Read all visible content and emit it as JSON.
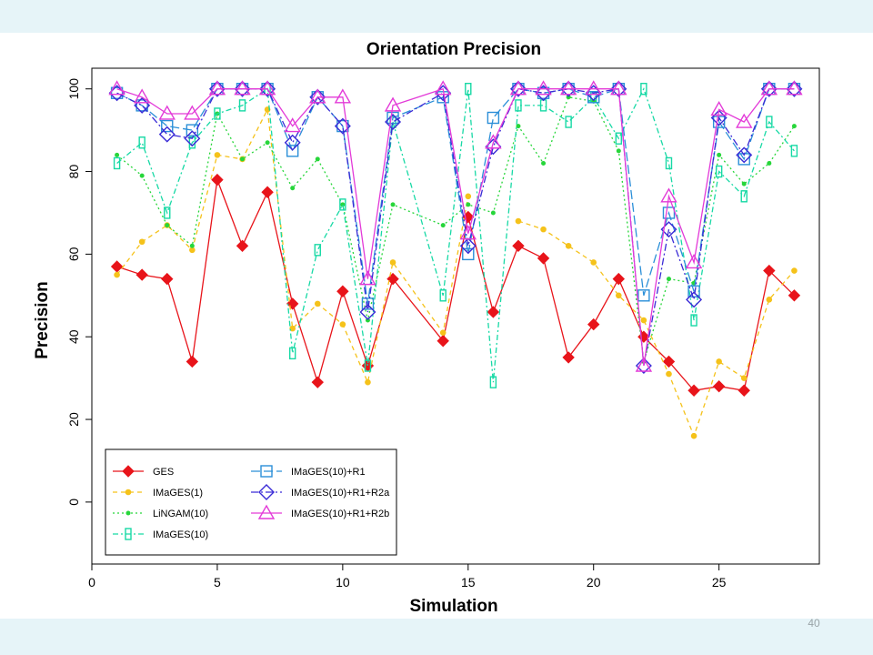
{
  "slide": {
    "number": "40"
  },
  "colors": {
    "band": "#e6f4f8"
  },
  "chart_data": {
    "type": "line",
    "title": "Orientation Precision",
    "xlabel": "Simulation",
    "ylabel": "Precision",
    "xlim": [
      0,
      29
    ],
    "ylim": [
      -15,
      105
    ],
    "xticks": [
      0,
      5,
      10,
      15,
      20,
      25
    ],
    "yticks": [
      0,
      20,
      40,
      60,
      80,
      100
    ],
    "grid": false,
    "legend_position": "bottom-left",
    "x": [
      1,
      2,
      3,
      4,
      5,
      6,
      7,
      8,
      9,
      10,
      11,
      12,
      14,
      15,
      16,
      17,
      18,
      19,
      20,
      21,
      22,
      23,
      24,
      25,
      26,
      27,
      28
    ],
    "series": [
      {
        "name": "GES",
        "color": "#e8141a",
        "dash": "",
        "marker": "diamond-filled",
        "values": [
          57,
          55,
          54,
          34,
          78,
          62,
          75,
          48,
          29,
          51,
          33,
          54,
          39,
          69,
          46,
          62,
          59,
          35,
          43,
          54,
          40,
          34,
          27,
          28,
          27,
          56,
          50
        ]
      },
      {
        "name": "IMaGES(1)",
        "color": "#f5c21a",
        "dash": "5,4",
        "marker": "dot",
        "values": [
          55,
          63,
          67,
          61,
          84,
          83,
          95,
          42,
          48,
          43,
          29,
          58,
          41,
          74,
          null,
          68,
          66,
          62,
          58,
          50,
          44,
          31,
          16,
          34,
          30,
          49,
          56
        ]
      },
      {
        "name": "LiNGAM(10)",
        "color": "#27d63a",
        "dash": "2,3",
        "marker": "dot-small",
        "values": [
          84,
          79,
          67,
          62,
          94,
          83,
          87,
          76,
          83,
          72,
          44,
          72,
          67,
          72,
          70,
          91,
          82,
          98,
          97,
          85,
          34,
          54,
          53,
          84,
          77,
          82,
          91
        ]
      },
      {
        "name": "IMaGES(10)",
        "color": "#17d9a5",
        "dash": "6,3,2,3",
        "marker": "rect-narrow",
        "values": [
          82,
          87,
          70,
          87,
          94,
          96,
          100,
          36,
          61,
          72,
          33,
          92,
          50,
          100,
          29,
          96,
          96,
          92,
          98,
          88,
          100,
          82,
          44,
          80,
          74,
          92,
          85
        ]
      },
      {
        "name": "IMaGES(10)+R1",
        "color": "#2b8fd8",
        "dash": "10,4",
        "marker": "square-open",
        "values": [
          99,
          96,
          91,
          90,
          100,
          100,
          100,
          85,
          98,
          91,
          48,
          93,
          98,
          60,
          93,
          100,
          99,
          100,
          98,
          100,
          50,
          70,
          51,
          92,
          83,
          100,
          100
        ]
      },
      {
        "name": "IMaGES(10)+R1+R2a",
        "color": "#3a2bd6",
        "dash": "8,3,2,3",
        "marker": "diamond-open",
        "values": [
          99,
          96,
          89,
          88,
          100,
          100,
          100,
          87,
          98,
          91,
          46,
          92,
          99,
          62,
          86,
          100,
          99,
          100,
          99,
          100,
          33,
          66,
          49,
          93,
          84,
          100,
          100
        ]
      },
      {
        "name": "IMaGES(10)+R1+R2b",
        "color": "#e33ad8",
        "dash": "",
        "marker": "triangle-open",
        "values": [
          100,
          98,
          94,
          94,
          100,
          100,
          100,
          91,
          98,
          98,
          54,
          96,
          100,
          65,
          87,
          100,
          100,
          100,
          100,
          100,
          33,
          74,
          58,
          95,
          92,
          100,
          100
        ]
      }
    ]
  }
}
